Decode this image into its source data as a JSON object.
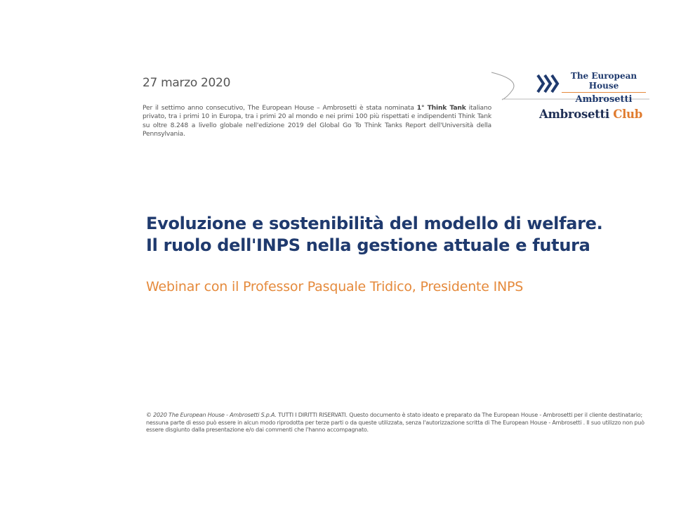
{
  "header": {
    "date": "27 marzo 2020",
    "intro_before": "Per il settimo anno consecutivo, The European House – Ambrosetti è stata nominata ",
    "intro_bold": "1° Think Tank",
    "intro_after": " italiano privato, tra i primi 10 in Europa, tra i primi 20 al mondo e nei primi 100 più rispettati e indipendenti Think Tank su oltre 8.248 a livello globale nell'edizione 2019 del Global Go To Think Tanks Report dell'Università della Pennsylvania."
  },
  "logo": {
    "line1": "The European House",
    "line2": "Ambrosetti",
    "club_name": "Ambrosetti",
    "club_accent": "Club"
  },
  "main": {
    "title_line1": "Evoluzione e sostenibilità del modello di welfare.",
    "title_line2": "Il ruolo dell'INPS nella gestione attuale e futura",
    "subtitle": "Webinar con il Professor Pasquale Tridico, Presidente INPS"
  },
  "footer": {
    "copyright_italic": "© 2020 The European House - Ambrosetti S.p.A.",
    "text": " TUTTI I DIRITTI RISERVATI. Questo documento è stato ideato e preparato da The European House - Ambrosetti per il cliente destinatario; nessuna parte di esso può essere in alcun modo riprodotta per terze parti o da queste utilizzata, senza l'autorizzazione scritta di The European House - Ambrosetti . Il suo utilizzo non può essere disgiunto dalla presentazione e/o dai commenti che l'hanno accompagnato."
  },
  "colors": {
    "navy": "#1f3a6e",
    "orange": "#e58a3c",
    "gray_text": "#555555"
  }
}
